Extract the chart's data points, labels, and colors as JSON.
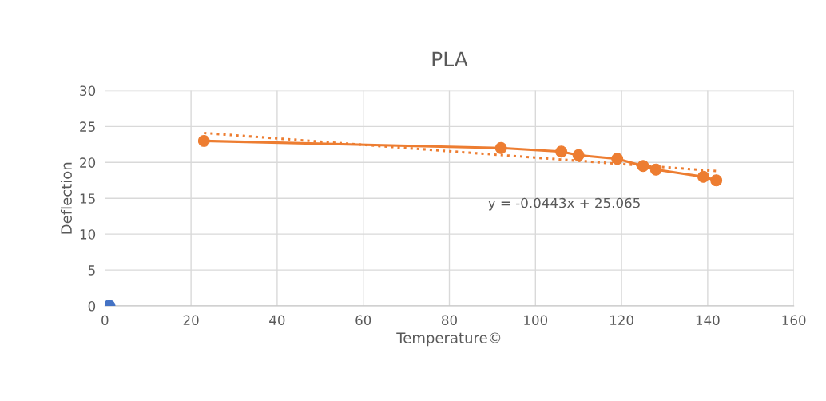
{
  "chart_data": {
    "type": "scatter",
    "title": "PLA",
    "xlabel": "Temperature©",
    "ylabel": "Deflection",
    "series": [
      {
        "color": "#4472c4",
        "x": [
          1
        ],
        "values": [
          0
        ]
      },
      {
        "type": "line",
        "color": "#ed7d31",
        "x": [
          23,
          92,
          106,
          110,
          119,
          125,
          128,
          139,
          142
        ],
        "values": [
          23,
          22,
          21.5,
          21,
          20.5,
          19.5,
          19,
          18,
          17.5
        ],
        "marker": "circle",
        "line_style": "solid"
      },
      {
        "type": "line",
        "color": "#ed7d31",
        "x": [
          23,
          142
        ],
        "values": [
          24.1,
          18.8
        ],
        "marker": "none",
        "line_style": "dotted"
      }
    ],
    "annotations": [
      "y = -0.0443x + 25.065"
    ],
    "xlim": [
      0,
      160
    ],
    "xticks": [
      0,
      20,
      40,
      60,
      80,
      100,
      120,
      140,
      160
    ],
    "ylim": [
      0,
      30
    ],
    "yticks": [
      0,
      5,
      10,
      15,
      20,
      25,
      30
    ],
    "grid": true,
    "legend": false
  }
}
